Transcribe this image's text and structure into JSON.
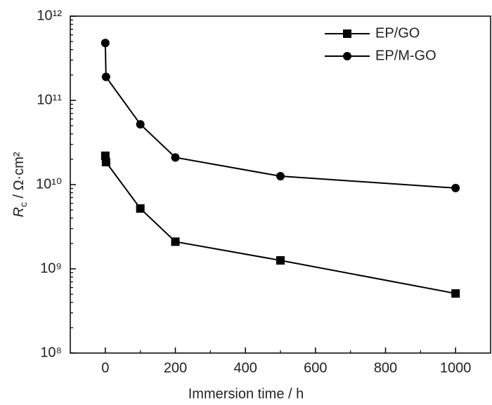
{
  "chart_data": {
    "type": "line",
    "xlabel": "Immersion time / h",
    "ylabel": {
      "symbol": "R",
      "subscript": "c",
      "unit": " / Ω·cm²"
    },
    "xlim": [
      -100,
      1100
    ],
    "xticks": [
      0,
      200,
      400,
      600,
      800,
      1000
    ],
    "ylim": [
      100000000,
      1000000000000
    ],
    "yscale": "log",
    "yticks": [
      {
        "value": 100000000,
        "label": "10⁸"
      },
      {
        "value": 1000000000,
        "label": "10⁹"
      },
      {
        "value": 10000000000,
        "label": "10¹⁰"
      },
      {
        "value": 100000000000,
        "label": "10¹¹"
      },
      {
        "value": 1000000000000,
        "label": "10¹²"
      }
    ],
    "legend": "upper right",
    "series": [
      {
        "name": "EP/GO",
        "color": "#000000",
        "marker": "square",
        "x": [
          0,
          2,
          100,
          200,
          500,
          1000
        ],
        "values": [
          22000000000,
          18500000000,
          5200000000,
          2100000000,
          1260000000,
          510000000
        ]
      },
      {
        "name": "EP/M-GO",
        "color": "#000000",
        "marker": "circle",
        "x": [
          0,
          2,
          100,
          200,
          500,
          1000
        ],
        "values": [
          480000000000,
          190000000000,
          52000000000,
          21000000000,
          12600000000,
          9100000000
        ]
      }
    ]
  }
}
